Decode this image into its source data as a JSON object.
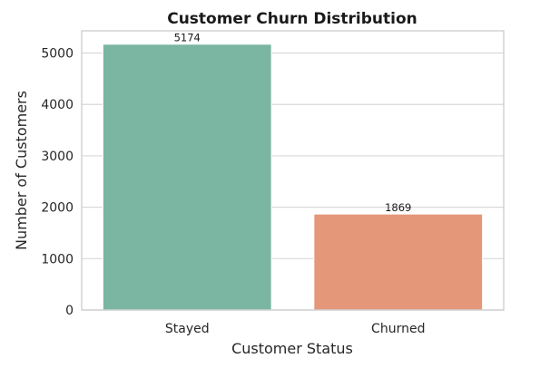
{
  "chart_data": {
    "type": "bar",
    "title": "Customer Churn Distribution",
    "xlabel": "Customer Status",
    "ylabel": "Number of Customers",
    "categories": [
      "Stayed",
      "Churned"
    ],
    "values": [
      5174,
      1869
    ],
    "data_labels": [
      "5174",
      "1869"
    ],
    "colors": [
      "#7ab6a1",
      "#e49879"
    ],
    "ylim": [
      0,
      5432.7
    ],
    "yticks": [
      0,
      1000,
      2000,
      3000,
      4000,
      5000
    ],
    "ytick_labels": [
      "0",
      "1000",
      "2000",
      "3000",
      "4000",
      "5000"
    ],
    "grid": true,
    "grid_axis": "y",
    "legend": "none"
  }
}
